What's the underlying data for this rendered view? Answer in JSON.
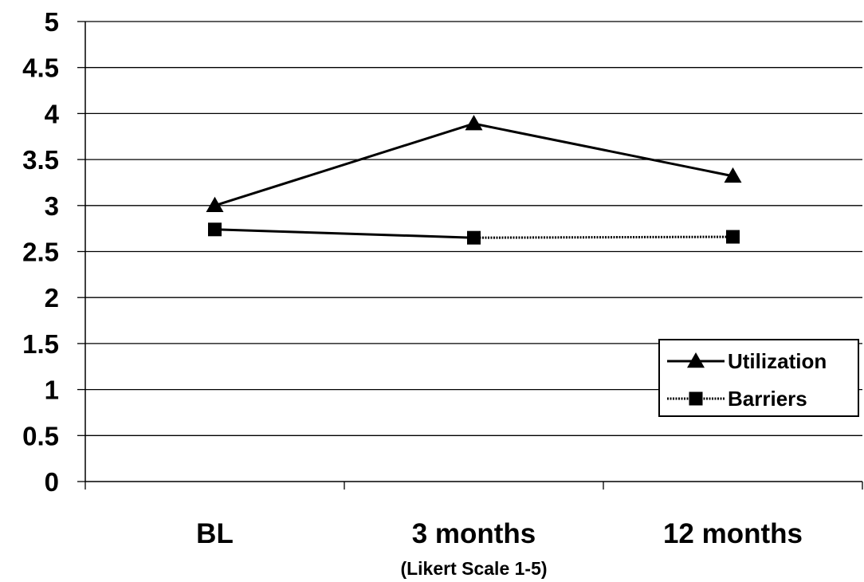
{
  "chart_data": {
    "type": "line",
    "categories": [
      "BL",
      "3 months",
      "12 months"
    ],
    "series": [
      {
        "name": "Utilization",
        "values": [
          3.0,
          3.89,
          3.32
        ],
        "marker": "triangle",
        "line_style": "solid",
        "color": "#000000"
      },
      {
        "name": "Barriers",
        "values": [
          2.74,
          2.65,
          2.66
        ],
        "marker": "square",
        "line_style": "dotted",
        "color": "#000000"
      }
    ],
    "xlabel": "(Likert Scale 1-5)",
    "ylabel": "",
    "ylim": [
      0,
      5
    ],
    "yticks": [
      "0",
      "0.5",
      "1",
      "1.5",
      "2",
      "2.5",
      "3",
      "3.5",
      "4",
      "4.5",
      "5"
    ],
    "grid": true,
    "legend_position": "right"
  }
}
